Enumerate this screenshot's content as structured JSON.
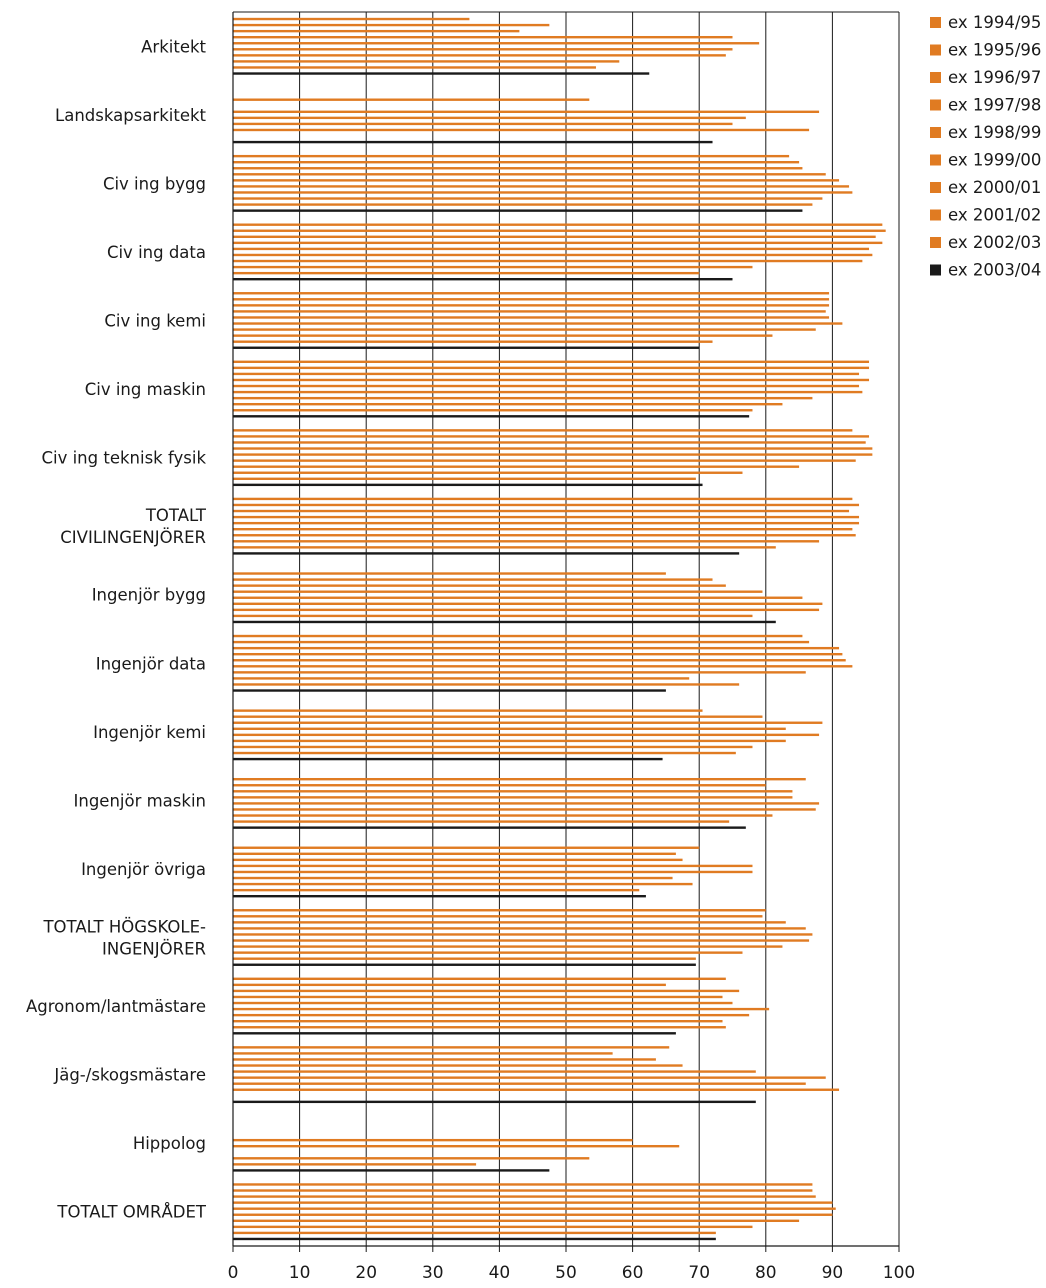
{
  "chart_data": {
    "type": "bar",
    "orientation": "horizontal",
    "title": "",
    "xlabel": "",
    "ylabel": "",
    "xlim": [
      0,
      100
    ],
    "x_ticks": [
      "0",
      "10",
      "20",
      "30",
      "40",
      "50",
      "60",
      "70",
      "80",
      "90",
      "100"
    ],
    "grid": "vertical lines at 10-unit intervals",
    "legend_position": "top-right",
    "categories": [
      [
        "Arkitekt"
      ],
      [
        "Landskapsarkitekt"
      ],
      [
        "Civ ing bygg"
      ],
      [
        "Civ ing data"
      ],
      [
        "Civ ing kemi"
      ],
      [
        "Civ ing maskin"
      ],
      [
        "Civ ing teknisk fysik"
      ],
      [
        "TOTALT",
        "CIVILINGENJÖRER"
      ],
      [
        "Ingenjör bygg"
      ],
      [
        "Ingenjör data"
      ],
      [
        "Ingenjör kemi"
      ],
      [
        "Ingenjör maskin"
      ],
      [
        "Ingenjör övriga"
      ],
      [
        "TOTALT HÖGSKOLE-",
        "INGENJÖRER"
      ],
      [
        "Agronom/lantmästare"
      ],
      [
        "Jäg-/skogsmästare"
      ],
      [
        "Hippolog"
      ],
      [
        "TOTALT OMRÅDET"
      ]
    ],
    "colors": {
      "orange": "#e07b22",
      "black": "#1a1a1a",
      "axis": "#1a1a1a"
    },
    "series": [
      {
        "name": "ex 1994/95",
        "color": "orange",
        "values": [
          35.5,
          null,
          83.5,
          97.5,
          89.5,
          95.5,
          93,
          93,
          null,
          85.5,
          null,
          null,
          null,
          80,
          74,
          65.5,
          null,
          87
        ]
      },
      {
        "name": "ex 1995/96",
        "color": "orange",
        "values": [
          47.5,
          null,
          85,
          98,
          89.5,
          95.5,
          95.5,
          94,
          65,
          86.5,
          70.5,
          86,
          70,
          79.5,
          65,
          57,
          null,
          87
        ]
      },
      {
        "name": "ex 1996/97",
        "color": "orange",
        "values": [
          43,
          53.5,
          85.5,
          96.5,
          89.5,
          94,
          95,
          92.5,
          72,
          91,
          79.5,
          80,
          66.5,
          83,
          76,
          63.5,
          null,
          87.5
        ]
      },
      {
        "name": "ex 1997/98",
        "color": "orange",
        "values": [
          75,
          null,
          89,
          97.5,
          89,
          95.5,
          96,
          94,
          74,
          91.5,
          88.5,
          84,
          67.5,
          86,
          73.5,
          67.5,
          null,
          90
        ]
      },
      {
        "name": "ex 1998/99",
        "color": "orange",
        "values": [
          79,
          88,
          91,
          95.5,
          89.5,
          94,
          96,
          94,
          79.5,
          92,
          83,
          84,
          78,
          87,
          75,
          78.5,
          60,
          90.5
        ]
      },
      {
        "name": "ex 1999/00",
        "color": "orange",
        "values": [
          75,
          77,
          92.5,
          96,
          91.5,
          94.5,
          93.5,
          93,
          85.5,
          93,
          88,
          88,
          78,
          86.5,
          80.5,
          89,
          67,
          90
        ]
      },
      {
        "name": "ex 2000/01",
        "color": "orange",
        "values": [
          74,
          75,
          93,
          94.5,
          87.5,
          87,
          85,
          93.5,
          88.5,
          86,
          83,
          87.5,
          66,
          82.5,
          77.5,
          86,
          null,
          85
        ]
      },
      {
        "name": "ex 2001/02",
        "color": "orange",
        "values": [
          58,
          86.5,
          88.5,
          78,
          81,
          82.5,
          76.5,
          88,
          88,
          68.5,
          78,
          81,
          69,
          76.5,
          73.5,
          91,
          53.5,
          78
        ]
      },
      {
        "name": "ex 2002/03",
        "color": "orange",
        "values": [
          54.5,
          null,
          87,
          70,
          72,
          78,
          69.5,
          81.5,
          78,
          76,
          75.5,
          74.5,
          61,
          69.5,
          74,
          null,
          36.5,
          72.5
        ]
      },
      {
        "name": "ex 2003/04",
        "color": "black",
        "values": [
          62.5,
          72,
          85.5,
          75,
          70,
          77.5,
          70.5,
          76,
          81.5,
          65,
          64.5,
          77,
          62,
          69.5,
          66.5,
          78.5,
          47.5,
          72.5
        ]
      }
    ]
  }
}
